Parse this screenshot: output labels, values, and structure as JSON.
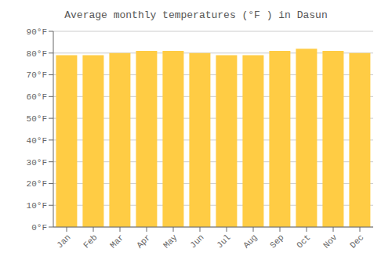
{
  "chart_data": {
    "type": "bar",
    "title": "Average monthly temperatures (°F ) in Dasun",
    "categories": [
      "Jan",
      "Feb",
      "Mar",
      "Apr",
      "May",
      "Jun",
      "Jul",
      "Aug",
      "Sep",
      "Oct",
      "Nov",
      "Dec"
    ],
    "values": [
      79,
      79,
      80,
      81,
      81,
      80,
      79,
      79,
      81,
      82,
      81,
      80
    ],
    "color": "#FFCC44",
    "ylim": [
      0,
      90
    ],
    "yticks": [
      {
        "value": 0,
        "label": "0°F"
      },
      {
        "value": 10,
        "label": "10°F"
      },
      {
        "value": 20,
        "label": "20°F"
      },
      {
        "value": 30,
        "label": "30°F"
      },
      {
        "value": 40,
        "label": "40°F"
      },
      {
        "value": 50,
        "label": "50°F"
      },
      {
        "value": 60,
        "label": "60°F"
      },
      {
        "value": 70,
        "label": "70°F"
      },
      {
        "value": 80,
        "label": "80°F"
      },
      {
        "value": 90,
        "label": "90°F"
      }
    ],
    "grid": true
  }
}
